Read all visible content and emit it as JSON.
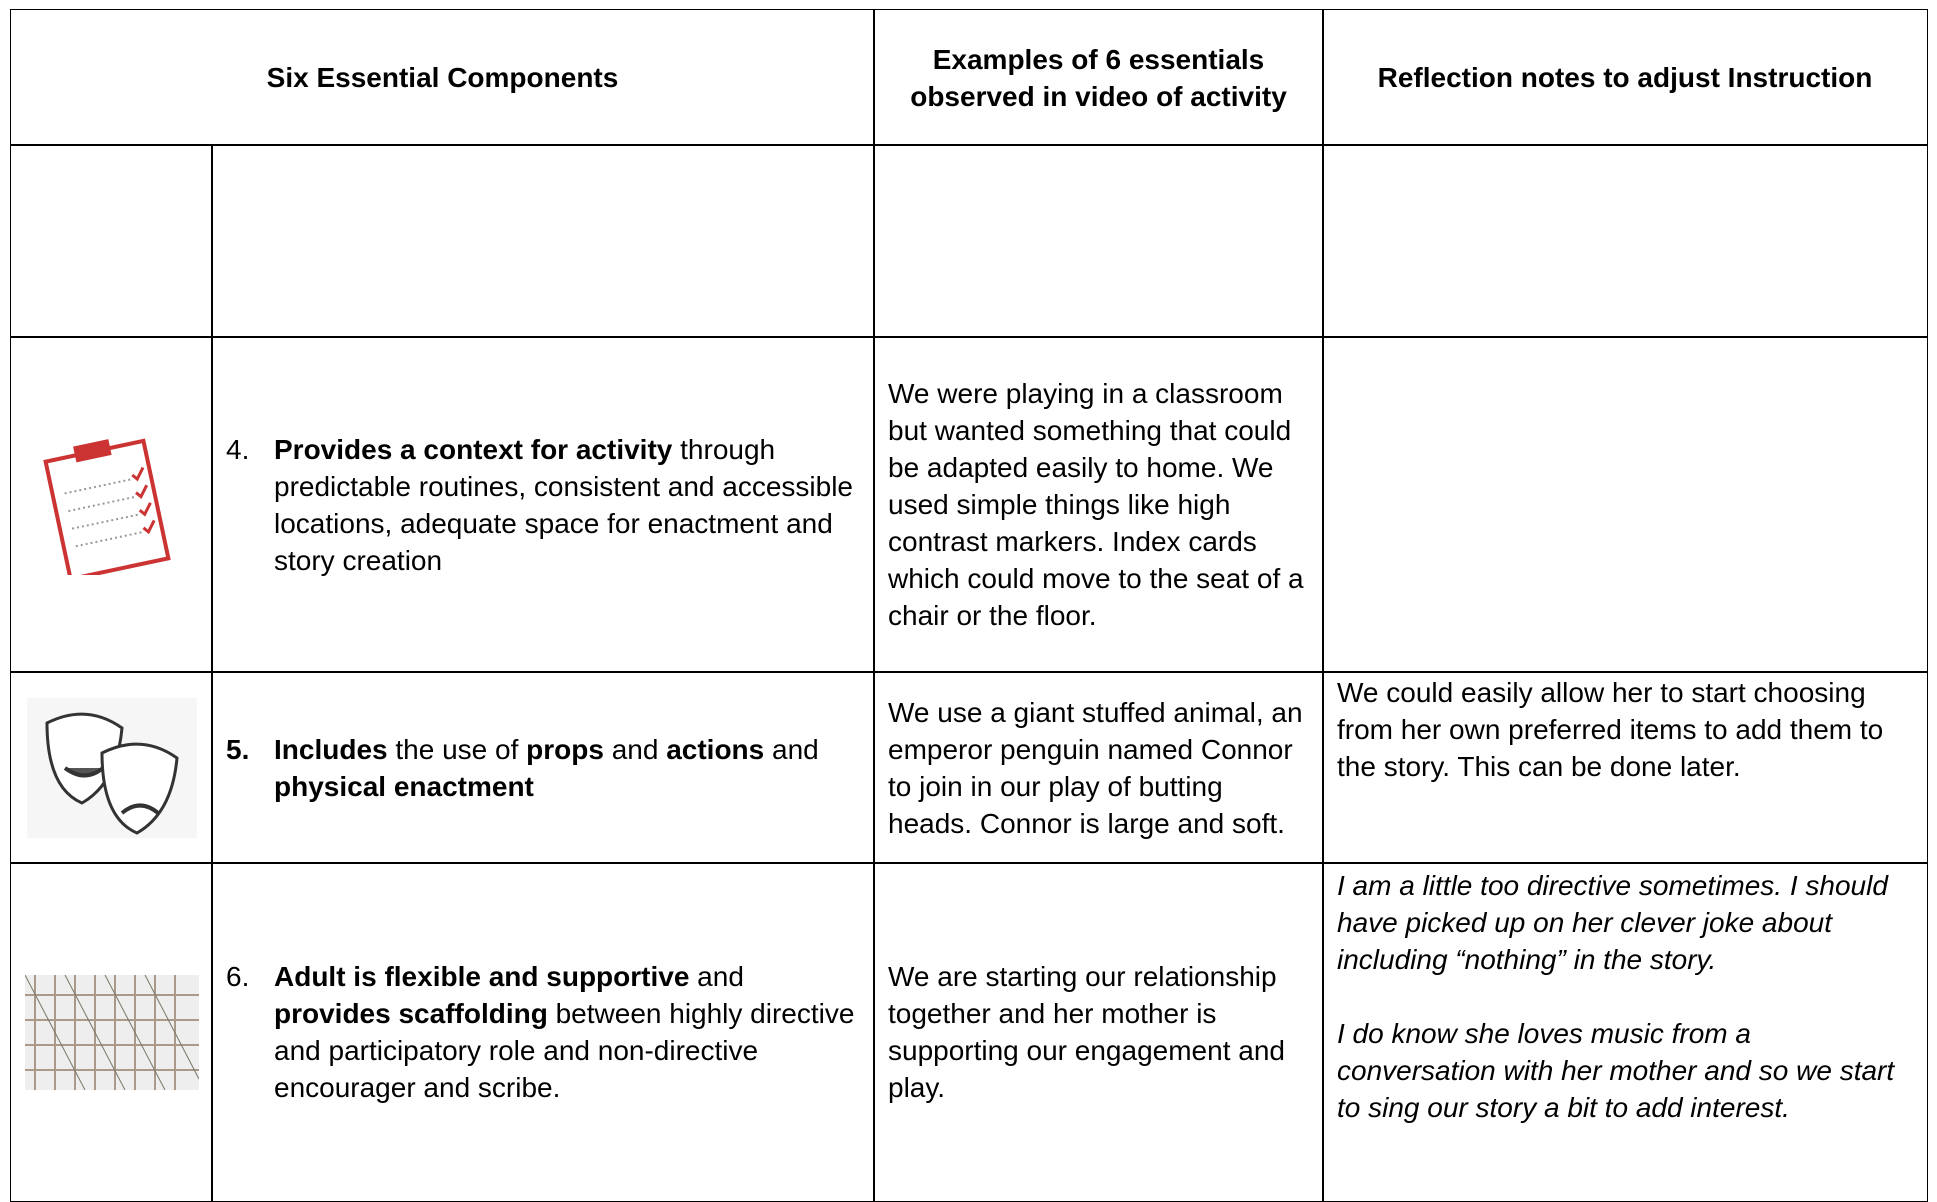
{
  "table": {
    "header": [
      "Six Essential Components",
      "Examples of 6 essentials observed in video of activity",
      "Reflection notes to adjust Instruction"
    ],
    "rows": [
      {
        "number": {
          "text": "4."
        },
        "component": [
          {
            "text": "Provides a context for activity",
            "bold": true
          },
          {
            "text": " through predictable routines, consistent and accessible locations, adequate space for enactment and story creation"
          }
        ],
        "examples": [
          "We were playing in a classroom but wanted something that could be adapted easily to home.  We used simple things like high contrast markers. Index cards which could move to the seat of a chair or the floor."
        ]
      },
      {
        "number": {
          "text": "5.",
          "bold": true
        },
        "component": [
          {
            "text": "Includes",
            "bold": true
          },
          {
            "text": " the use of "
          },
          {
            "text": "props",
            "bold": true
          },
          {
            "text": " and "
          },
          {
            "text": "actions",
            "bold": true
          },
          {
            "text": " and "
          },
          {
            "text": "physical enactment",
            "bold": true
          }
        ],
        "examples": [
          "We use a giant stuffed animal, an emperor penguin named Connor to join in our play of butting heads. Connor is large and soft."
        ],
        "reflection": [
          "We could easily allow her to start choosing from her own preferred items to add them to the story.  This can be done later."
        ]
      },
      {
        "number": {
          "text": "6."
        },
        "component": [
          {
            "text": "Adult is flexible and supportive",
            "bold": true
          },
          {
            "text": " and "
          },
          {
            "text": "provides scaffolding",
            "bold": true
          },
          {
            "text": " between highly directive and participatory role and non-directive encourager and scribe."
          }
        ],
        "examples": [
          "We are starting our relationship together and her mother is supporting our engagement and play."
        ],
        "reflection": [
          "I am a little too directive sometimes.  I should have picked up on her clever joke about including “nothing” in the story.",
          "I do know she loves music from a conversation with her mother and so we start to sing our story a bit to add interest."
        ],
        "reflection_italic": true
      }
    ]
  }
}
